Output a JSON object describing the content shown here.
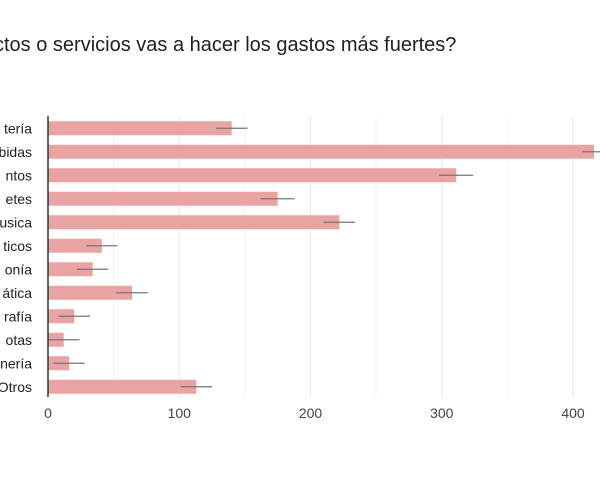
{
  "title": "ctos o servicios vas a hacer los gastos más fuertes?",
  "colors": {
    "bar": "#eaa3a3",
    "error": "#757575",
    "grid": "#e6e6e6",
    "axis": "#333333",
    "text": "#202124"
  },
  "chart_data": {
    "type": "bar",
    "orientation": "horizontal",
    "categories": [
      "tería",
      "bidas",
      "ntos",
      "etes",
      "usica",
      "ticos",
      "onía",
      "ática",
      "rafía",
      "otas",
      "nería",
      "Otros"
    ],
    "values": [
      140,
      416,
      311,
      175,
      222,
      41,
      34,
      64,
      20,
      12,
      16,
      113
    ],
    "error": [
      12,
      9,
      13,
      13,
      12,
      12,
      12,
      12,
      12,
      12,
      12,
      12
    ],
    "xlim": [
      0,
      440
    ],
    "xticks": [
      0,
      100,
      200,
      300,
      400
    ],
    "xlabel": "",
    "ylabel": "",
    "grid": true
  }
}
